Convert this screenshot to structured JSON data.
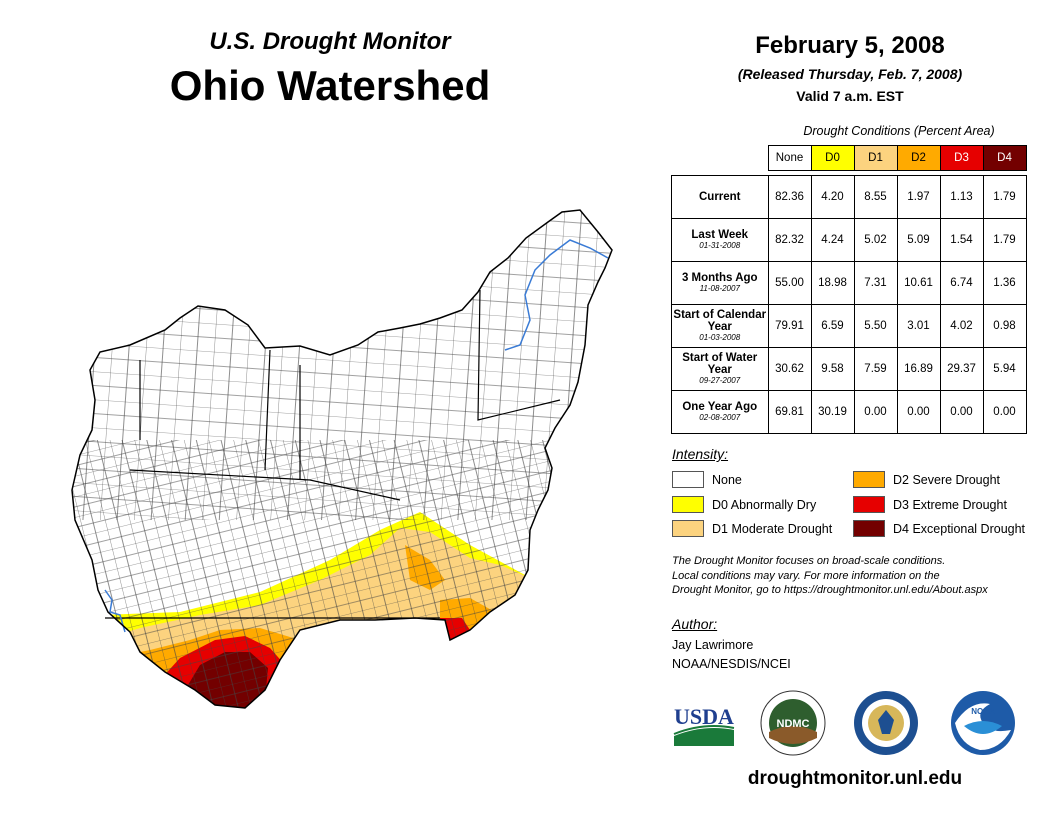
{
  "header": {
    "title_top": "U.S. Drought Monitor",
    "title_main": "Ohio Watershed",
    "date": "February 5, 2008",
    "released": "(Released Thursday, Feb. 7, 2008)",
    "valid": "Valid 7 a.m. EST"
  },
  "table": {
    "caption": "Drought Conditions (Percent Area)",
    "columns": [
      "None",
      "D0",
      "D1",
      "D2",
      "D3",
      "D4"
    ],
    "rows": [
      {
        "label": "Current",
        "sub": "",
        "values": [
          "82.36",
          "4.20",
          "8.55",
          "1.97",
          "1.13",
          "1.79"
        ]
      },
      {
        "label": "Last Week",
        "sub": "01-31-2008",
        "values": [
          "82.32",
          "4.24",
          "5.02",
          "5.09",
          "1.54",
          "1.79"
        ]
      },
      {
        "label": "3 Months Ago",
        "sub": "11-08-2007",
        "values": [
          "55.00",
          "18.98",
          "7.31",
          "10.61",
          "6.74",
          "1.36"
        ]
      },
      {
        "label": "Start of Calendar Year",
        "sub": "01-03-2008",
        "values": [
          "79.91",
          "6.59",
          "5.50",
          "3.01",
          "4.02",
          "0.98"
        ]
      },
      {
        "label": "Start of Water Year",
        "sub": "09-27-2007",
        "values": [
          "30.62",
          "9.58",
          "7.59",
          "16.89",
          "29.37",
          "5.94"
        ]
      },
      {
        "label": "One Year Ago",
        "sub": "02-08-2007",
        "values": [
          "69.81",
          "30.19",
          "0.00",
          "0.00",
          "0.00",
          "0.00"
        ]
      }
    ]
  },
  "legend": {
    "title": "Intensity:",
    "items": [
      {
        "label": "None",
        "color": "#ffffff"
      },
      {
        "label": "D0 Abnormally Dry",
        "color": "#ffff00"
      },
      {
        "label": "D1 Moderate Drought",
        "color": "#fcd37f"
      },
      {
        "label": "D2 Severe Drought",
        "color": "#ffaa00"
      },
      {
        "label": "D3 Extreme Drought",
        "color": "#e60000"
      },
      {
        "label": "D4 Exceptional Drought",
        "color": "#730000"
      }
    ]
  },
  "note": {
    "line1": "The Drought Monitor focuses on broad-scale conditions.",
    "line2": "Local conditions may vary. For more information on the",
    "line3": "Drought Monitor, go to https://droughtmonitor.unl.edu/About.aspx"
  },
  "author": {
    "title": "Author:",
    "name": "Jay Lawrimore",
    "org": "NOAA/NESDIS/NCEI"
  },
  "logos": {
    "usda": "USDA",
    "ndmc": "NDMC",
    "noaa": "NOAA"
  },
  "footer": {
    "url": "droughtmonitor.unl.edu"
  }
}
